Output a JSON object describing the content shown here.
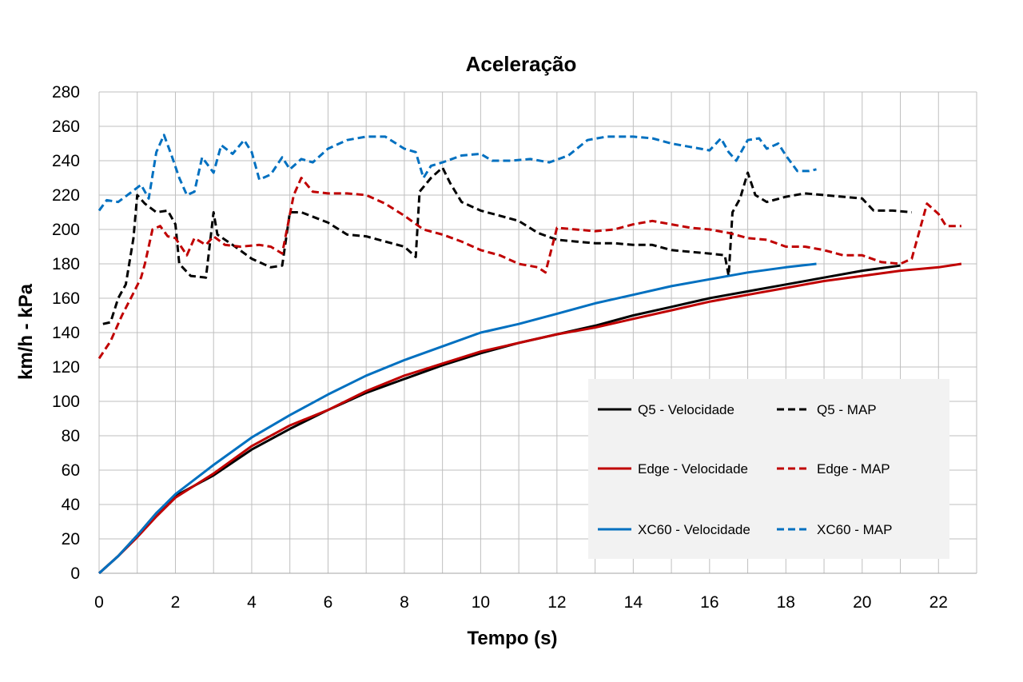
{
  "chart_data": {
    "type": "line",
    "title": "Aceleração",
    "xlabel": "Tempo (s)",
    "ylabel": "km/h - kPa",
    "xlim": [
      0,
      23
    ],
    "ylim": [
      0,
      280
    ],
    "xticks": [
      0,
      2,
      4,
      6,
      8,
      10,
      12,
      14,
      16,
      18,
      20,
      22
    ],
    "yticks": [
      0,
      20,
      40,
      60,
      80,
      100,
      120,
      140,
      160,
      180,
      200,
      220,
      240,
      260,
      280
    ],
    "grid": true,
    "legend_position": "bottom-right",
    "series": [
      {
        "name": "Q5 - Velocidade",
        "color": "#000000",
        "dash": "solid",
        "points": [
          [
            0,
            0
          ],
          [
            0.5,
            10
          ],
          [
            1,
            22
          ],
          [
            1.5,
            35
          ],
          [
            2,
            45
          ],
          [
            3,
            57
          ],
          [
            4,
            72
          ],
          [
            5,
            84
          ],
          [
            6,
            95
          ],
          [
            7,
            105
          ],
          [
            8,
            113
          ],
          [
            9,
            121
          ],
          [
            10,
            128
          ],
          [
            11,
            134
          ],
          [
            12,
            139
          ],
          [
            13,
            144
          ],
          [
            14,
            150
          ],
          [
            15,
            155
          ],
          [
            16,
            160
          ],
          [
            17,
            164
          ],
          [
            18,
            168
          ],
          [
            19,
            172
          ],
          [
            20,
            176
          ],
          [
            21,
            179
          ]
        ]
      },
      {
        "name": "Q5 - MAP",
        "color": "#000000",
        "dash": "dashed",
        "points": [
          [
            0.1,
            145
          ],
          [
            0.3,
            146
          ],
          [
            0.5,
            160
          ],
          [
            0.7,
            168
          ],
          [
            0.9,
            195
          ],
          [
            1.0,
            220
          ],
          [
            1.2,
            215
          ],
          [
            1.5,
            210
          ],
          [
            1.8,
            211
          ],
          [
            2.0,
            203
          ],
          [
            2.1,
            180
          ],
          [
            2.4,
            173
          ],
          [
            2.8,
            172
          ],
          [
            3.0,
            210
          ],
          [
            3.1,
            197
          ],
          [
            3.5,
            191
          ],
          [
            4.0,
            183
          ],
          [
            4.5,
            178
          ],
          [
            4.8,
            179
          ],
          [
            5.0,
            210
          ],
          [
            5.3,
            210
          ],
          [
            6.0,
            204
          ],
          [
            6.5,
            197
          ],
          [
            7.0,
            196
          ],
          [
            7.5,
            193
          ],
          [
            8.0,
            190
          ],
          [
            8.3,
            184
          ],
          [
            8.4,
            222
          ],
          [
            8.7,
            230
          ],
          [
            9.0,
            236
          ],
          [
            9.2,
            227
          ],
          [
            9.5,
            216
          ],
          [
            10.0,
            211
          ],
          [
            10.5,
            208
          ],
          [
            11.0,
            205
          ],
          [
            11.5,
            198
          ],
          [
            12.0,
            194
          ],
          [
            12.5,
            193
          ],
          [
            13.0,
            192
          ],
          [
            13.5,
            192
          ],
          [
            14.0,
            191
          ],
          [
            14.5,
            191
          ],
          [
            15.0,
            188
          ],
          [
            15.5,
            187
          ],
          [
            16.0,
            186
          ],
          [
            16.4,
            185
          ],
          [
            16.5,
            173
          ],
          [
            16.6,
            210
          ],
          [
            16.8,
            218
          ],
          [
            17.0,
            233
          ],
          [
            17.2,
            220
          ],
          [
            17.5,
            216
          ],
          [
            18.0,
            219
          ],
          [
            18.5,
            221
          ],
          [
            19.0,
            220
          ],
          [
            19.5,
            219
          ],
          [
            20.0,
            218
          ],
          [
            20.3,
            211
          ],
          [
            20.8,
            211
          ],
          [
            21.3,
            210
          ]
        ]
      },
      {
        "name": "Edge - Velocidade",
        "color": "#c00000",
        "dash": "solid",
        "points": [
          [
            0,
            0
          ],
          [
            0.5,
            10
          ],
          [
            1,
            21
          ],
          [
            1.5,
            33
          ],
          [
            2,
            44
          ],
          [
            3,
            58
          ],
          [
            4,
            74
          ],
          [
            5,
            86
          ],
          [
            6,
            95
          ],
          [
            7,
            106
          ],
          [
            8,
            115
          ],
          [
            9,
            122
          ],
          [
            10,
            129
          ],
          [
            11,
            134
          ],
          [
            12,
            139
          ],
          [
            13,
            143
          ],
          [
            14,
            148
          ],
          [
            15,
            153
          ],
          [
            16,
            158
          ],
          [
            17,
            162
          ],
          [
            18,
            166
          ],
          [
            19,
            170
          ],
          [
            20,
            173
          ],
          [
            21,
            176
          ],
          [
            22,
            178
          ],
          [
            22.6,
            180
          ]
        ]
      },
      {
        "name": "Edge - MAP",
        "color": "#c00000",
        "dash": "dashed",
        "points": [
          [
            0,
            125
          ],
          [
            0.3,
            135
          ],
          [
            0.6,
            150
          ],
          [
            0.9,
            163
          ],
          [
            1.1,
            172
          ],
          [
            1.2,
            180
          ],
          [
            1.4,
            200
          ],
          [
            1.6,
            202
          ],
          [
            1.8,
            196
          ],
          [
            2.0,
            195
          ],
          [
            2.3,
            185
          ],
          [
            2.5,
            195
          ],
          [
            2.8,
            191
          ],
          [
            3.0,
            196
          ],
          [
            3.3,
            191
          ],
          [
            3.7,
            190
          ],
          [
            4.2,
            191
          ],
          [
            4.5,
            190
          ],
          [
            4.8,
            186
          ],
          [
            5.1,
            220
          ],
          [
            5.3,
            230
          ],
          [
            5.6,
            222
          ],
          [
            6.0,
            221
          ],
          [
            6.5,
            221
          ],
          [
            7.0,
            220
          ],
          [
            7.5,
            215
          ],
          [
            8.0,
            208
          ],
          [
            8.5,
            200
          ],
          [
            9.0,
            197
          ],
          [
            9.5,
            193
          ],
          [
            10.0,
            188
          ],
          [
            10.5,
            185
          ],
          [
            11.0,
            180
          ],
          [
            11.5,
            178
          ],
          [
            11.7,
            175
          ],
          [
            12.0,
            201
          ],
          [
            12.5,
            200
          ],
          [
            13.0,
            199
          ],
          [
            13.5,
            200
          ],
          [
            14.0,
            203
          ],
          [
            14.5,
            205
          ],
          [
            15.0,
            203
          ],
          [
            15.5,
            201
          ],
          [
            16.0,
            200
          ],
          [
            16.5,
            198
          ],
          [
            17.0,
            195
          ],
          [
            17.5,
            194
          ],
          [
            18.0,
            190
          ],
          [
            18.5,
            190
          ],
          [
            19.0,
            188
          ],
          [
            19.5,
            185
          ],
          [
            20.0,
            185
          ],
          [
            20.5,
            181
          ],
          [
            21.0,
            180
          ],
          [
            21.3,
            183
          ],
          [
            21.7,
            215
          ],
          [
            22.0,
            209
          ],
          [
            22.2,
            202
          ],
          [
            22.6,
            202
          ]
        ]
      },
      {
        "name": "XC60 - Velocidade",
        "color": "#0070c0",
        "dash": "solid",
        "points": [
          [
            0,
            0
          ],
          [
            0.5,
            10
          ],
          [
            1,
            22
          ],
          [
            1.5,
            35
          ],
          [
            2,
            46
          ],
          [
            3,
            63
          ],
          [
            4,
            79
          ],
          [
            5,
            92
          ],
          [
            6,
            104
          ],
          [
            7,
            115
          ],
          [
            8,
            124
          ],
          [
            9,
            132
          ],
          [
            10,
            140
          ],
          [
            11,
            145
          ],
          [
            12,
            151
          ],
          [
            13,
            157
          ],
          [
            14,
            162
          ],
          [
            15,
            167
          ],
          [
            16,
            171
          ],
          [
            17,
            175
          ],
          [
            18,
            178
          ],
          [
            18.8,
            180
          ]
        ]
      },
      {
        "name": "XC60 - MAP",
        "color": "#0070c0",
        "dash": "dashed",
        "points": [
          [
            0,
            211
          ],
          [
            0.2,
            217
          ],
          [
            0.5,
            216
          ],
          [
            0.8,
            221
          ],
          [
            1.1,
            226
          ],
          [
            1.3,
            218
          ],
          [
            1.5,
            245
          ],
          [
            1.7,
            255
          ],
          [
            1.9,
            243
          ],
          [
            2.1,
            230
          ],
          [
            2.3,
            220
          ],
          [
            2.5,
            222
          ],
          [
            2.7,
            242
          ],
          [
            3.0,
            233
          ],
          [
            3.2,
            249
          ],
          [
            3.5,
            244
          ],
          [
            3.8,
            252
          ],
          [
            4.0,
            245
          ],
          [
            4.2,
            229
          ],
          [
            4.5,
            232
          ],
          [
            4.8,
            242
          ],
          [
            5.0,
            235
          ],
          [
            5.3,
            241
          ],
          [
            5.6,
            239
          ],
          [
            6.0,
            247
          ],
          [
            6.5,
            252
          ],
          [
            7.0,
            254
          ],
          [
            7.5,
            254
          ],
          [
            8.0,
            247
          ],
          [
            8.3,
            245
          ],
          [
            8.5,
            230
          ],
          [
            8.7,
            237
          ],
          [
            9.0,
            239
          ],
          [
            9.5,
            243
          ],
          [
            10.0,
            244
          ],
          [
            10.3,
            240
          ],
          [
            10.8,
            240
          ],
          [
            11.3,
            241
          ],
          [
            11.8,
            239
          ],
          [
            12.3,
            243
          ],
          [
            12.8,
            252
          ],
          [
            13.3,
            254
          ],
          [
            14.0,
            254
          ],
          [
            14.5,
            253
          ],
          [
            15.0,
            250
          ],
          [
            15.5,
            248
          ],
          [
            16.0,
            246
          ],
          [
            16.3,
            253
          ],
          [
            16.5,
            245
          ],
          [
            16.7,
            240
          ],
          [
            17.0,
            252
          ],
          [
            17.3,
            253
          ],
          [
            17.5,
            247
          ],
          [
            17.8,
            250
          ],
          [
            18.0,
            243
          ],
          [
            18.3,
            234
          ],
          [
            18.6,
            234
          ],
          [
            18.8,
            235
          ]
        ]
      }
    ]
  }
}
